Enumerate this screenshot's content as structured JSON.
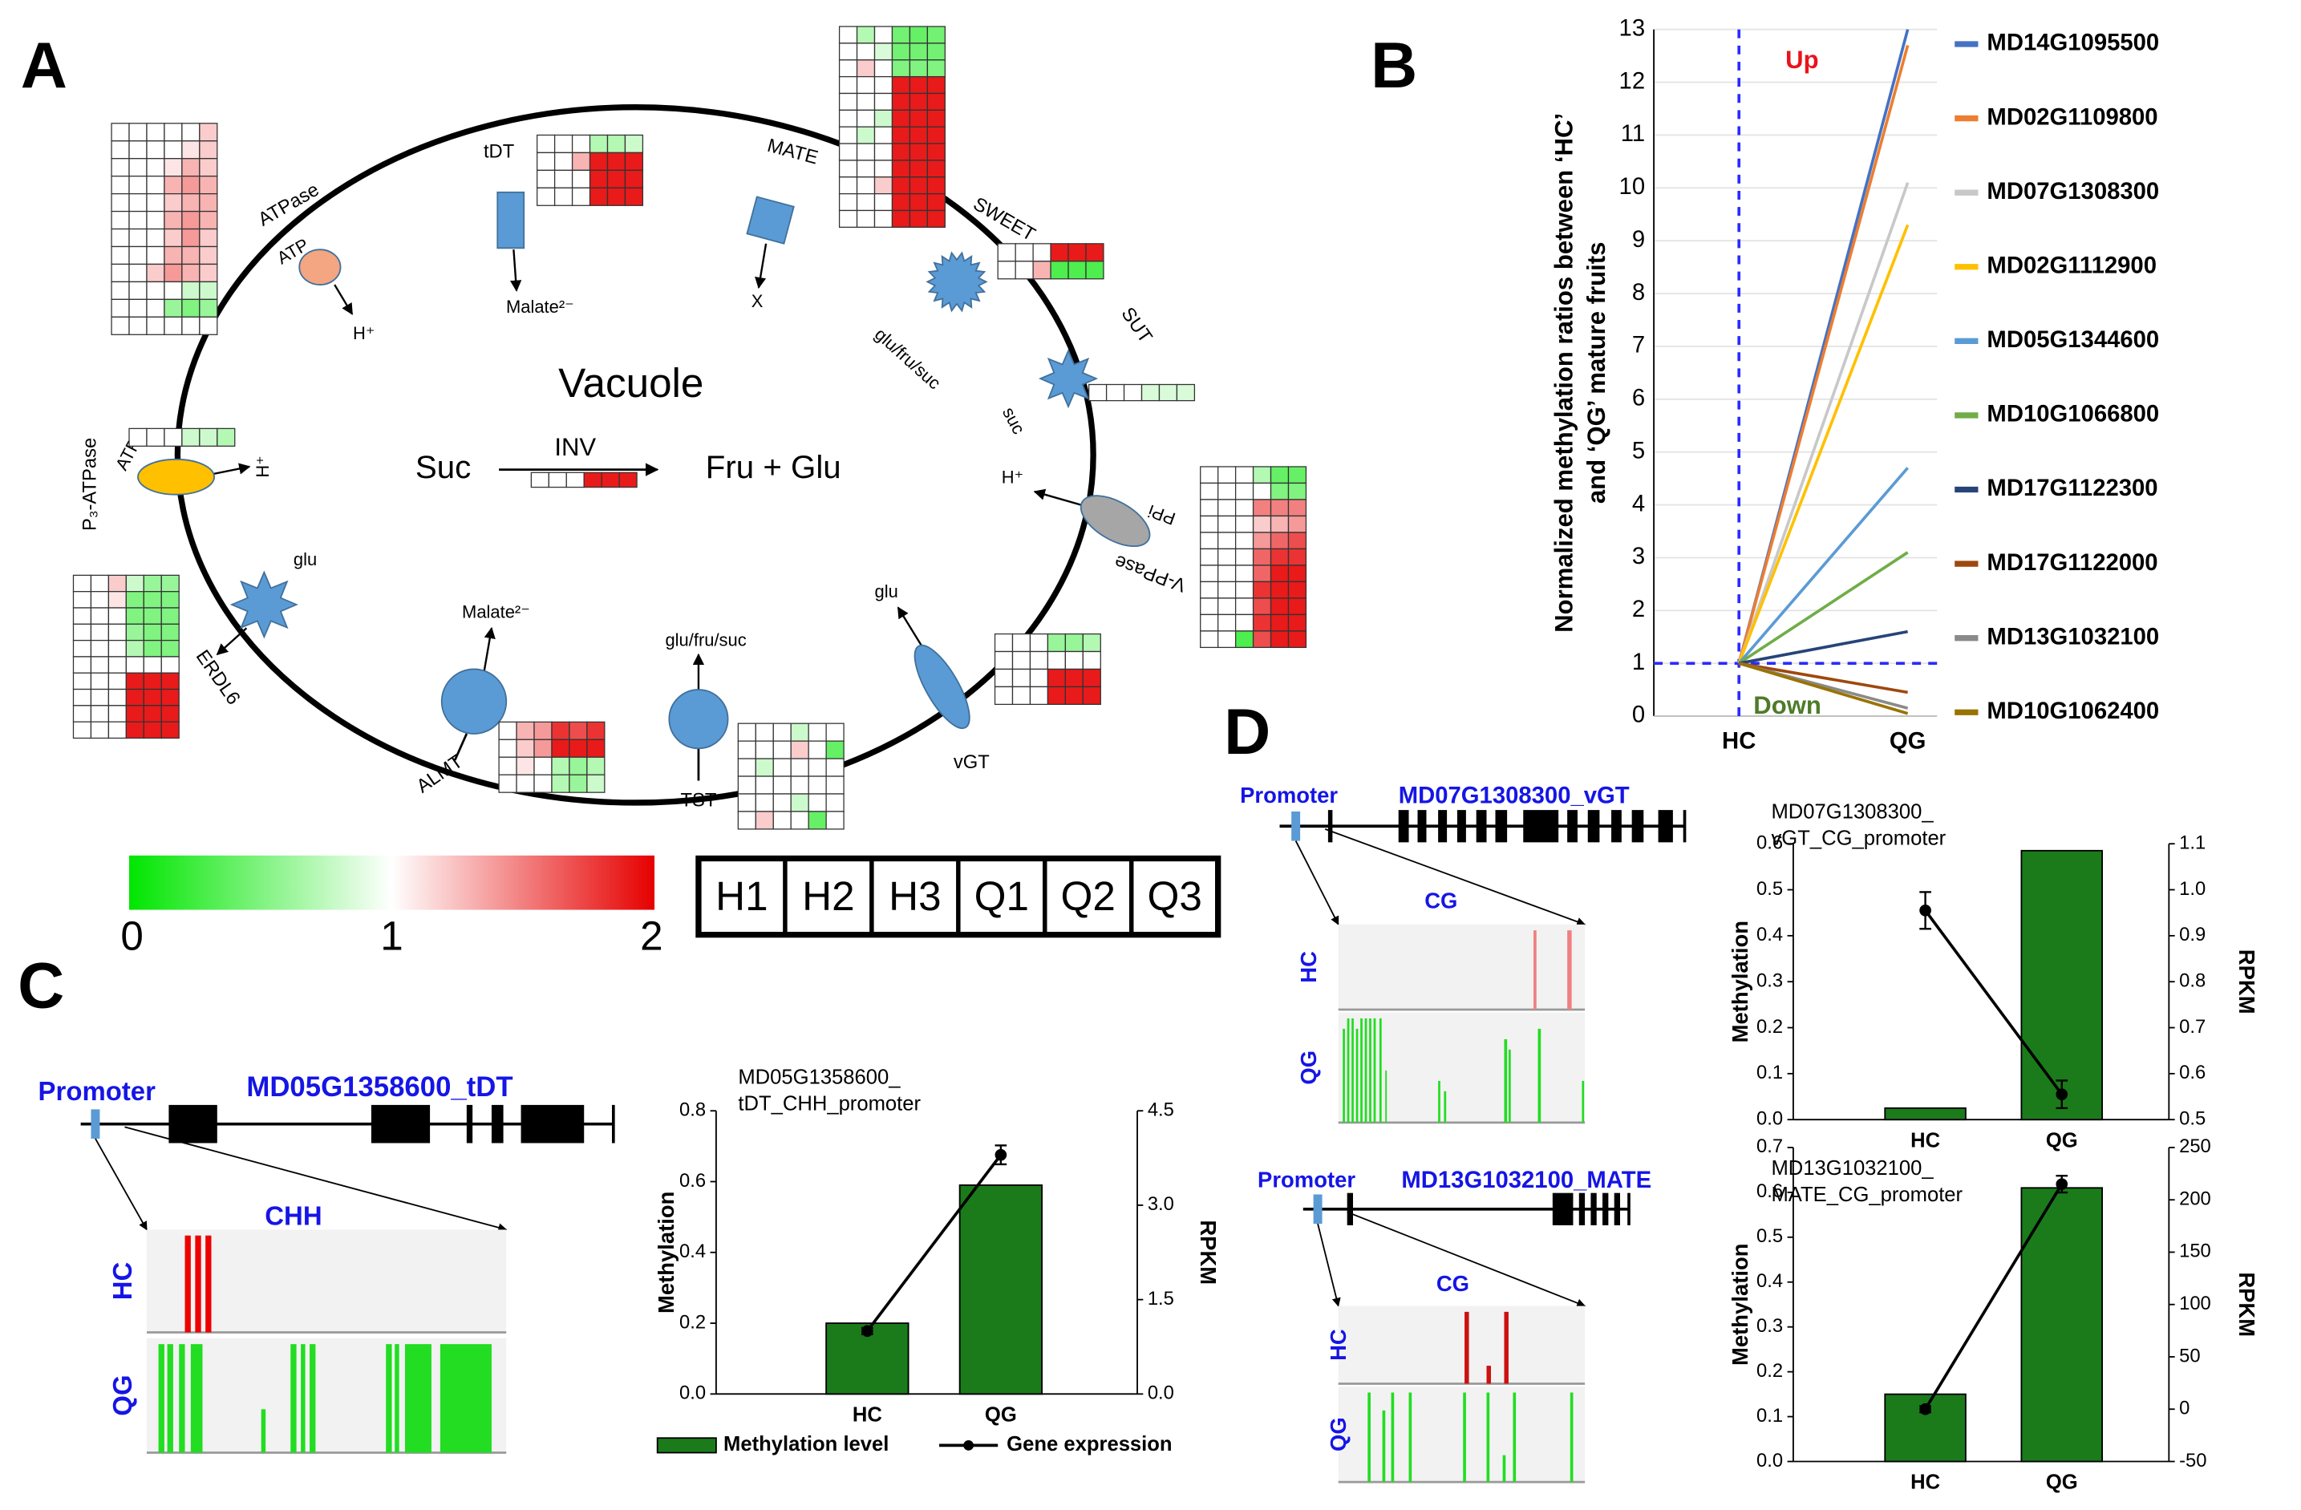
{
  "panel_labels": [
    "A",
    "B",
    "C",
    "D"
  ],
  "diagram": {
    "compartment": "Vacuole",
    "reaction": {
      "substrate": "Suc",
      "enzyme": "INV",
      "product": "Fru + Glu",
      "heatmap": [
        [
          1,
          1,
          1,
          1.9,
          1.9,
          1.9
        ]
      ]
    },
    "transporters": [
      {
        "name": "ATPase",
        "labels": [
          "ATP",
          "H⁺"
        ],
        "heatmap": [
          [
            1,
            1,
            1,
            1,
            1,
            1.2
          ],
          [
            1,
            1,
            1,
            1,
            1.1,
            1.2
          ],
          [
            1,
            1,
            1,
            1.1,
            1.3,
            1.2
          ],
          [
            1,
            1,
            1,
            1.3,
            1.4,
            1.3
          ],
          [
            1,
            1,
            1,
            1.2,
            1.3,
            1.3
          ],
          [
            1,
            1,
            1,
            1.3,
            1.4,
            1.3
          ],
          [
            1,
            1,
            1,
            1.2,
            1.4,
            1.2
          ],
          [
            1,
            1,
            1,
            1.3,
            1.3,
            1.2
          ],
          [
            1,
            1,
            1.2,
            1.4,
            1.3,
            1.2
          ],
          [
            1,
            1,
            1,
            1,
            0.8,
            0.8
          ],
          [
            1,
            1,
            1,
            0.6,
            0.5,
            0.6
          ],
          [
            1,
            1,
            1,
            1,
            1,
            1
          ]
        ]
      },
      {
        "name": "tDT",
        "labels": [
          "Malate²⁻"
        ],
        "heatmap": [
          [
            1,
            1,
            1,
            0.7,
            0.7,
            0.8
          ],
          [
            1,
            1,
            1.3,
            1.9,
            1.9,
            1.9
          ],
          [
            1,
            1,
            1,
            1.9,
            1.9,
            1.9
          ],
          [
            1,
            1,
            1,
            1.9,
            1.9,
            1.9
          ]
        ]
      },
      {
        "name": "MATE",
        "labels": [
          "X"
        ],
        "heatmap": [
          [
            1,
            0.7,
            1,
            0.45,
            0.4,
            0.45
          ],
          [
            1,
            1,
            0.85,
            0.45,
            0.45,
            0.45
          ],
          [
            1,
            1.2,
            1,
            0.5,
            0.5,
            0.5
          ],
          [
            1,
            1,
            1,
            1.9,
            1.9,
            1.9
          ],
          [
            1,
            1,
            1,
            1.9,
            1.9,
            1.9
          ],
          [
            1,
            1,
            0.8,
            1.9,
            1.9,
            1.9
          ],
          [
            1,
            0.8,
            1,
            1.9,
            1.9,
            1.9
          ],
          [
            1,
            1,
            1,
            1.9,
            1.9,
            1.9
          ],
          [
            1,
            1,
            1,
            1.9,
            1.9,
            1.9
          ],
          [
            1,
            1,
            1.2,
            1.9,
            1.9,
            1.9
          ],
          [
            1,
            1,
            1,
            1.9,
            1.9,
            1.9
          ],
          [
            1,
            1,
            1,
            1.9,
            1.9,
            1.9
          ]
        ]
      },
      {
        "name": "SWEET",
        "labels": [
          "glu/fru/suc"
        ],
        "heatmap": [
          [
            1,
            1,
            1,
            1.9,
            1.9,
            1.9
          ],
          [
            1,
            1,
            1.3,
            0.3,
            0.3,
            0.3
          ]
        ]
      },
      {
        "name": "SUT",
        "labels": [
          "suc"
        ],
        "heatmap": [
          [
            1,
            1,
            1,
            0.85,
            0.85,
            0.85
          ]
        ]
      },
      {
        "name": "V-PPase",
        "labels": [
          "PPi",
          "H⁺"
        ],
        "heatmap": [
          [
            1,
            1,
            1,
            0.7,
            0.4,
            0.4
          ],
          [
            1,
            1,
            1,
            1,
            0.5,
            0.5
          ],
          [
            1,
            1,
            1,
            1.5,
            1.5,
            1.5
          ],
          [
            1,
            1,
            1,
            1.2,
            1.3,
            1.4
          ],
          [
            1,
            1,
            1,
            1.4,
            1.6,
            1.7
          ],
          [
            1,
            1,
            1,
            1.6,
            1.8,
            1.8
          ],
          [
            1,
            1,
            1,
            1.6,
            1.9,
            1.9
          ],
          [
            1,
            1,
            1,
            1.8,
            1.9,
            1.9
          ],
          [
            1,
            1,
            1,
            1.7,
            1.9,
            1.9
          ],
          [
            1,
            1,
            1,
            1.8,
            1.9,
            1.9
          ],
          [
            1,
            1,
            0.3,
            1.7,
            1.9,
            1.9
          ]
        ]
      },
      {
        "name": "vGT",
        "labels": [
          "glu"
        ],
        "heatmap": [
          [
            1,
            1,
            1,
            0.6,
            0.6,
            0.7
          ],
          [
            1,
            1,
            1,
            1,
            1,
            1
          ],
          [
            1,
            1,
            1,
            1.9,
            1.9,
            1.9
          ],
          [
            1,
            1,
            1,
            1.9,
            1.9,
            1.9
          ]
        ]
      },
      {
        "name": "TST",
        "labels": [
          "glu/fru/suc"
        ],
        "heatmap": [
          [
            1,
            1,
            1,
            0.8,
            1,
            1
          ],
          [
            1,
            1,
            1,
            1.2,
            1,
            0.4
          ],
          [
            1,
            0.8,
            1,
            1,
            1,
            1
          ],
          [
            1,
            1,
            1,
            1,
            1,
            1
          ],
          [
            1,
            1,
            1,
            0.8,
            1,
            1
          ],
          [
            1,
            1.2,
            1,
            1,
            0.4,
            1
          ]
        ]
      },
      {
        "name": "ALMT",
        "labels": [
          "Malate²⁻"
        ],
        "heatmap": [
          [
            1,
            1.3,
            1.4,
            1.8,
            1.7,
            1.8
          ],
          [
            1,
            1.2,
            1.4,
            1.9,
            1.9,
            1.9
          ],
          [
            1,
            1.1,
            1,
            0.7,
            0.6,
            0.7
          ],
          [
            1,
            1,
            1,
            0.7,
            0.6,
            0.8
          ]
        ]
      },
      {
        "name": "ERDL6",
        "labels": [
          "glu"
        ],
        "heatmap": [
          [
            1,
            1,
            1.2,
            0.8,
            0.6,
            0.6
          ],
          [
            1,
            1,
            1.1,
            0.5,
            0.5,
            0.5
          ],
          [
            1,
            1,
            1,
            0.5,
            0.5,
            0.5
          ],
          [
            1,
            1,
            1,
            0.6,
            0.5,
            0.5
          ],
          [
            1,
            1,
            1,
            0.7,
            0.5,
            0.5
          ],
          [
            1,
            1,
            1,
            1,
            1,
            1
          ],
          [
            1,
            1,
            1,
            1.9,
            1.9,
            1.9
          ],
          [
            1,
            1,
            1,
            1.9,
            1.9,
            1.9
          ],
          [
            1,
            1,
            1,
            1.9,
            1.9,
            1.9
          ],
          [
            1,
            1,
            1,
            1.9,
            1.9,
            1.9
          ]
        ]
      },
      {
        "name": "P₃-ATPase",
        "labels": [
          "ATP",
          "H⁺"
        ],
        "heatmap": [
          [
            1,
            1,
            1,
            0.8,
            0.8,
            0.7
          ]
        ]
      }
    ]
  },
  "heatmap_scale": {
    "colors": [
      "#00e600",
      "#ffffff",
      "#e60000"
    ],
    "ticks": [
      0,
      1,
      2
    ],
    "columns": [
      "H1",
      "H2",
      "H3",
      "Q1",
      "Q2",
      "Q3"
    ]
  },
  "chart_data": [
    {
      "type": "line",
      "categories": [
        "HC",
        "QG"
      ],
      "y_label": [
        "Normalized methylation ratios between ‘HC’",
        "and ‘QG’ mature fruits"
      ],
      "annotations": [
        "Up",
        "Down"
      ],
      "reference_line": 1,
      "ylim": [
        0,
        13
      ],
      "yticks": [
        0,
        1,
        2,
        3,
        4,
        5,
        6,
        7,
        8,
        9,
        10,
        11,
        12,
        13
      ],
      "grid": true,
      "series": [
        {
          "name": "MD14G1095500",
          "color": "#4472c4",
          "values": [
            1,
            13.0
          ]
        },
        {
          "name": "MD02G1109800",
          "color": "#ed7d31",
          "values": [
            1,
            12.7
          ]
        },
        {
          "name": "MD07G1308300",
          "color": "#c8c8c8",
          "values": [
            1,
            10.1
          ]
        },
        {
          "name": "MD02G1112900",
          "color": "#ffc000",
          "values": [
            1,
            9.3
          ]
        },
        {
          "name": "MD05G1344600",
          "color": "#5b9bd5",
          "values": [
            1,
            4.7
          ]
        },
        {
          "name": "MD10G1066800",
          "color": "#70ad47",
          "values": [
            1,
            3.1
          ]
        },
        {
          "name": "MD17G1122300",
          "color": "#264478",
          "values": [
            1,
            1.6
          ]
        },
        {
          "name": "MD17G1122000",
          "color": "#9e480e",
          "values": [
            1,
            0.45
          ]
        },
        {
          "name": "MD13G1032100",
          "color": "#8a8a8a",
          "values": [
            1,
            0.15
          ]
        },
        {
          "name": "MD10G1062400",
          "color": "#997300",
          "values": [
            1,
            0.05
          ]
        }
      ]
    },
    {
      "type": "bar_line",
      "title": [
        "MD05G1358600_",
        "tDT_CHH_promoter"
      ],
      "categories": [
        "HC",
        "QG"
      ],
      "y_label": "Methylation",
      "y2_label": "RPKM",
      "legend": true,
      "ylim": [
        0,
        0.8
      ],
      "yticks": [
        {
          "value": 0,
          "label": "0.0"
        },
        0.2,
        0.4,
        0.6,
        0.8
      ],
      "y2lim": [
        0,
        4.5
      ],
      "y2ticks": [
        {
          "value": 0,
          "label": "0.0"
        },
        1.5,
        {
          "value": 3,
          "label": "3.0"
        },
        4.5
      ],
      "series": [
        {
          "name": "Methylation level",
          "color": "#1b7b1b",
          "values": [
            0.2,
            0.59
          ]
        },
        {
          "name": "Gene expression",
          "color": "#000000",
          "axis": "y2",
          "values": [
            1.0,
            3.8
          ],
          "errors": [
            0.05,
            0.15
          ]
        }
      ]
    },
    {
      "type": "bar_line",
      "title": [
        "MD07G1308300_",
        "vGT_CG_promoter"
      ],
      "categories": [
        "HC",
        "QG"
      ],
      "y_label": "Methylation",
      "y2_label": "RPKM",
      "legend": false,
      "ylim": [
        0,
        0.6
      ],
      "yticks": [
        {
          "value": 0,
          "label": "0.0"
        },
        0.1,
        0.2,
        0.3,
        0.4,
        0.5,
        0.6
      ],
      "y2lim": [
        0.5,
        1.1
      ],
      "y2ticks": [
        0.5,
        0.6,
        0.7,
        0.8,
        0.9,
        {
          "value": 1,
          "label": "1.0"
        },
        1.1
      ],
      "series": [
        {
          "name": "Methylation level",
          "color": "#1b7b1b",
          "values": [
            0.025,
            0.585
          ]
        },
        {
          "name": "Gene expression",
          "color": "#000000",
          "axis": "y2",
          "values": [
            0.955,
            0.555
          ],
          "errors": [
            0.04,
            0.03
          ]
        }
      ]
    },
    {
      "type": "bar_line",
      "title": [
        "MD13G1032100_",
        "MATE_CG_promoter"
      ],
      "categories": [
        "HC",
        "QG"
      ],
      "y_label": "Methylation",
      "y2_label": "RPKM",
      "legend": false,
      "ylim": [
        0,
        0.7
      ],
      "yticks": [
        {
          "value": 0,
          "label": "0.0"
        },
        0.1,
        0.2,
        0.3,
        0.4,
        0.5,
        0.6,
        0.7
      ],
      "y2lim": [
        -50,
        250
      ],
      "y2ticks": [
        -50,
        0,
        50,
        100,
        150,
        200,
        250
      ],
      "series": [
        {
          "name": "Methylation level",
          "color": "#1b7b1b",
          "values": [
            0.15,
            0.61
          ]
        },
        {
          "name": "Gene expression",
          "color": "#000000",
          "axis": "y2",
          "values": [
            0,
            215
          ],
          "errors": [
            3,
            8
          ]
        }
      ]
    }
  ],
  "gene_tracks": [
    {
      "promoter": "Promoter",
      "gene": "MD05G1358600_tDT",
      "context": "CHH",
      "samples": [
        "HC",
        "QG"
      ]
    },
    {
      "promoter": "Promoter",
      "gene": "MD07G1308300_vGT",
      "context": "CG",
      "samples": [
        "HC",
        "QG"
      ]
    },
    {
      "promoter": "Promoter",
      "gene": "MD13G1032100_MATE",
      "context": "CG",
      "samples": [
        "HC",
        "QG"
      ]
    }
  ]
}
